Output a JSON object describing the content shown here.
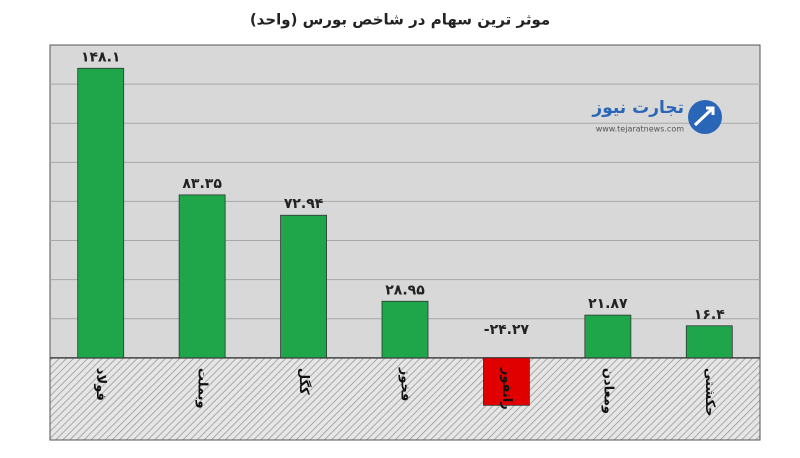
{
  "chart_data": {
    "type": "bar",
    "title": "موثر ترین سهام در شاخص بورس (واحد)",
    "categories": [
      "فولاد",
      "وبملت",
      "کگل",
      "فخوز",
      "رانفور",
      "ومعادن",
      "حکشتی"
    ],
    "values": [
      148.1,
      83.35,
      72.94,
      28.95,
      -24.27,
      21.87,
      16.4
    ],
    "value_labels": [
      "۱۴۸.۱",
      "۸۳.۳۵",
      "۷۲.۹۴",
      "۲۸.۹۵",
      "-۲۴.۲۷",
      "۲۱.۸۷",
      "۱۶.۴"
    ],
    "color": "#1fa64b",
    "negative_color": "#e00000",
    "ylim": [
      -42,
      160
    ],
    "yticks": [
      20,
      40,
      60,
      80,
      100,
      120,
      140
    ],
    "grid": true,
    "watermark": {
      "name": "تجارت نیوز",
      "url": "www.tejaratnews.com"
    }
  }
}
